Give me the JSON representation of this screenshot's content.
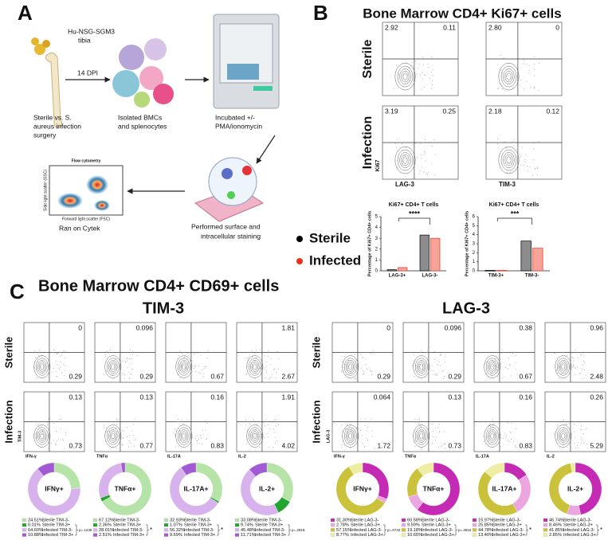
{
  "panel_a": {
    "label": "A",
    "tibia": [
      "Hu-NSG-SGM3",
      "tibia"
    ],
    "dpi": "14 DPI",
    "surgery": [
      "Sterile vs. S.",
      "aureus infection",
      "surgery"
    ],
    "isolated": [
      "Isolated BMCs",
      "and splenocytes"
    ],
    "incubated": [
      "Incubated +/-",
      "PMA/ionomycin"
    ],
    "flow_title": "Flow cytometry",
    "flow_x": "Forward light scatter (FSC)",
    "flow_y": "Side light scatter (SSC)",
    "cytek": "Ran on Cytek",
    "staining": [
      "Performed surface and",
      "intracellular staining"
    ]
  },
  "panel_b": {
    "label": "B",
    "title": "Bone Marrow CD4+ Ki67+ cells",
    "rows": [
      "Sterile",
      "Infection"
    ],
    "y_axis": "Ki67",
    "columns": [
      "LAG-3",
      "TIM-3"
    ],
    "plots": [
      [
        {
          "tl": "2.92",
          "tr": "0.11"
        },
        {
          "tl": "2.80",
          "tr": "0"
        }
      ],
      [
        {
          "tl": "3.19",
          "tr": "0.25"
        },
        {
          "tl": "2.18",
          "tr": "0.12"
        }
      ]
    ]
  },
  "chart_data": [
    {
      "type": "bar",
      "title": "Ki67+ CD4+ T cells",
      "y_label": "Percentage of Ki67+ CD4+ cells",
      "categories": [
        "LAG-3+",
        "LAG-3-"
      ],
      "series": [
        {
          "name": "Sterile",
          "color": "#000000",
          "fill": "#8c8c8c",
          "values": [
            0.1,
            3.3
          ]
        },
        {
          "name": "Infected",
          "color": "#e8321e",
          "fill": "#f6a49a",
          "values": [
            0.3,
            3.0
          ]
        }
      ],
      "ylim": [
        0,
        5
      ],
      "yticks": [
        0,
        1,
        2,
        3,
        4,
        5
      ],
      "annotation": "****"
    },
    {
      "type": "bar",
      "title": "Ki67+ CD4+ T cells",
      "y_label": "Percentage of Ki67+ CD4+ cells",
      "categories": [
        "TIM-3+",
        "TIM-3-"
      ],
      "series": [
        {
          "name": "Sterile",
          "color": "#000000",
          "fill": "#8c8c8c",
          "values": [
            0.05,
            3.3
          ]
        },
        {
          "name": "Infected",
          "color": "#e8321e",
          "fill": "#f6a49a",
          "values": [
            0.05,
            2.5
          ]
        }
      ],
      "ylim": [
        0,
        6
      ],
      "yticks": [
        0,
        1,
        2,
        3,
        4,
        5,
        6
      ],
      "annotation": "***"
    }
  ],
  "panel_c": {
    "label": "C",
    "title": "Bone Marrow CD4+ CD69+ cells",
    "rows": [
      "Sterile",
      "Infection"
    ],
    "groups": [
      {
        "title": "TIM-3",
        "y_axis": "TIM-3",
        "colors": [
          "#b6e3a8",
          "#22a52f",
          "#d7b2ec",
          "#a15ad4"
        ],
        "x_labels": [
          "IFN-γ",
          "TNFα",
          "IL-17A",
          "IL-2"
        ],
        "plots": [
          [
            {
              "tr": "0",
              "br": "0.29"
            },
            {
              "tr": "0.096",
              "br": "0.29"
            },
            {
              "br": "0.67"
            },
            {
              "tr": "1.81",
              "br": "2.67"
            }
          ],
          [
            {
              "tr": "0.13",
              "br": "0.73"
            },
            {
              "tr": "0.13",
              "br": "0.77"
            },
            {
              "tr": "0.16",
              "br": "0.83"
            },
            {
              "tr": "1.91",
              "br": "4.02"
            }
          ]
        ],
        "donuts": [
          {
            "center": "IFNγ+",
            "p": "p=.1238",
            "entries": [
              {
                "value": 24.51,
                "label": "24.51%",
                "name": "Sterile TIM-3-"
              },
              {
                "value": 0.01,
                "label": "0.01%",
                "name": "Sterile TIM-3+"
              },
              {
                "value": 64.6,
                "label": "64.60%",
                "name": "Infected TIM-3-"
              },
              {
                "value": 10.88,
                "label": "10.88%",
                "name": "Infected TIM-3+"
              }
            ]
          },
          {
            "center": "TNFα+",
            "p": "*",
            "entries": [
              {
                "value": 67.12,
                "label": "67.12%",
                "name": "Sterile TIM-3-"
              },
              {
                "value": 2.36,
                "label": "2.36%",
                "name": "Sterile TIM-3+"
              },
              {
                "value": 28.01,
                "label": "28.01%",
                "name": "Infected TIM-3-"
              },
              {
                "value": 2.51,
                "label": "2.51%",
                "name": "Infected TIM-3+"
              }
            ]
          },
          {
            "center": "IL-17A+",
            "p": "*",
            "entries": [
              {
                "value": 32.93,
                "label": "32.93%",
                "name": "Sterile TIM-3-"
              },
              {
                "value": 1.07,
                "label": "1.07%",
                "name": "Sterile TIM-3+"
              },
              {
                "value": 56.32,
                "label": "56.32%",
                "name": "Infected TIM-3-"
              },
              {
                "value": 9.69,
                "label": "9.69%",
                "name": "Infected TIM-3+"
              }
            ]
          },
          {
            "center": "IL-2+",
            "p": "p=.2919",
            "entries": [
              {
                "value": 33.08,
                "label": "33.08%",
                "name": "Sterile TIM-3-"
              },
              {
                "value": 9.74,
                "label": "9.74%",
                "name": "Sterile TIM-3+"
              },
              {
                "value": 45.48,
                "label": "45.48%",
                "name": "Infected TIM-3-"
              },
              {
                "value": 11.71,
                "label": "11.71%",
                "name": "Infected TIM-3+"
              }
            ]
          }
        ]
      },
      {
        "title": "LAG-3",
        "y_axis": "LAG-3",
        "colors": [
          "#c42ab4",
          "#eba6e0",
          "#c9c23a",
          "#efeca4"
        ],
        "x_labels": [
          "IFN-γ",
          "TNFα",
          "IL-17A",
          "IL-2"
        ],
        "plots": [
          [
            {
              "tr": "0",
              "br": "0.29"
            },
            {
              "tr": "0.096",
              "br": "0.29"
            },
            {
              "tr": "0.38",
              "br": "0.67"
            },
            {
              "tr": "0.96",
              "br": "2.48"
            }
          ],
          [
            {
              "tr": "0.064",
              "br": "1.72"
            },
            {
              "tr": "0.13",
              "br": "0.73"
            },
            {
              "tr": "0.16",
              "br": "0.83"
            },
            {
              "tr": "0.26",
              "br": "5.29"
            }
          ]
        ],
        "donuts": [
          {
            "center": "IFNγ+",
            "p": "p=.0742",
            "entries": [
              {
                "value": 31.3,
                "label": "31.30%",
                "name": "Sterile LAG-3-"
              },
              {
                "value": 2.78,
                "label": "2.78%",
                "name": "Sterile LAG-3+"
              },
              {
                "value": 57.15,
                "label": "57.15%",
                "name": "Infected LAG-3-"
              },
              {
                "value": 8.77,
                "label": "8.77%",
                "name": "Infected LAG-3+"
              }
            ]
          },
          {
            "center": "TNFα+",
            "p": "p=.3916",
            "entries": [
              {
                "value": 60.58,
                "label": "60.58%",
                "name": "Sterile LAG-3-"
              },
              {
                "value": 9.59,
                "label": "9.59%",
                "name": "Sterile LAG-3+"
              },
              {
                "value": 19.18,
                "label": "19.18%",
                "name": "Infected LAG-3-"
              },
              {
                "value": 10.65,
                "label": "10.65%",
                "name": "Infected LAG-3+"
              }
            ]
          },
          {
            "center": "IL-17A+",
            "p": "*",
            "entries": [
              {
                "value": 15.97,
                "label": "15.97%",
                "name": "Sterile LAG-3-"
              },
              {
                "value": 25.85,
                "label": "25.85%",
                "name": "Sterile LAG-3+"
              },
              {
                "value": 44.78,
                "label": "44.78%",
                "name": "Infected LAG-3-"
              },
              {
                "value": 13.4,
                "label": "13.40%",
                "name": "Infected LAG-3+"
              }
            ]
          },
          {
            "center": "IL-2+",
            "p": "*",
            "entries": [
              {
                "value": 46.74,
                "label": "46.74%",
                "name": "Sterile LAG-3-"
              },
              {
                "value": 8.46,
                "label": "8.46%",
                "name": "Sterile LAG-3+"
              },
              {
                "value": 41.85,
                "label": "41.85%",
                "name": "Infected LAG-3-"
              },
              {
                "value": 2.85,
                "label": "2.85%",
                "name": "Infected LAG-3+"
              }
            ]
          }
        ]
      }
    ]
  }
}
